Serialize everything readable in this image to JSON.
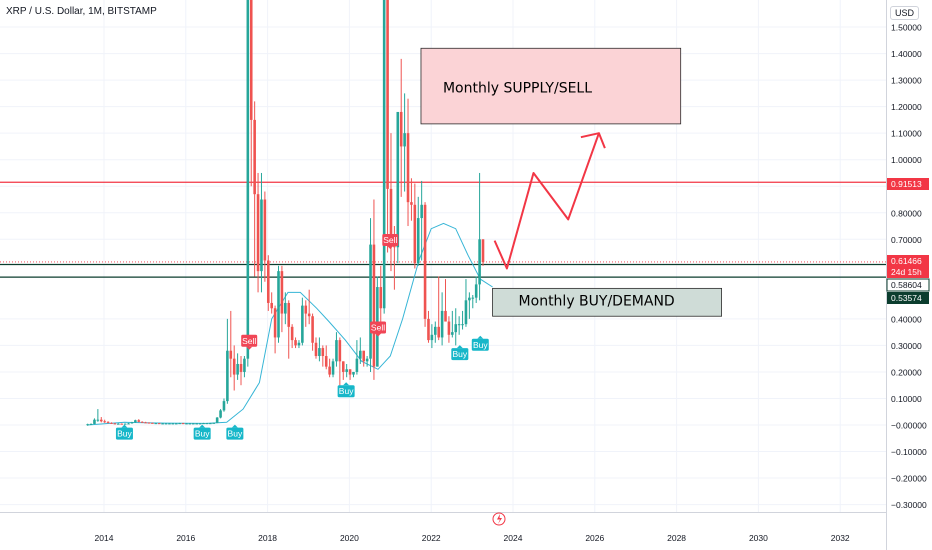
{
  "header": {
    "title": "XRP / U.S. Dollar, 1M, BITSTAMP",
    "currency": "USD"
  },
  "colors": {
    "up": "#26a69a",
    "down": "#ef5350",
    "ma": "#36b5d6",
    "supply_fill": "#fbd3d6",
    "demand_fill": "#cfdcd7",
    "red_line": "#f23645",
    "dark_line": "#0b3d2e",
    "buy_badge": "#17b7c9",
    "sell_badge": "#f04656"
  },
  "chart_data": {
    "type": "candlestick",
    "ylim": [
      -0.32,
      1.58
    ],
    "xlim": [
      2013.0,
      2033.3
    ],
    "yticks": [
      "1.50000",
      "1.40000",
      "1.30000",
      "1.20000",
      "1.10000",
      "1.00000",
      "0.90000",
      "0.80000",
      "0.70000",
      "0.40000",
      "0.30000",
      "0.20000",
      "0.10000",
      "−0.00000",
      "−0.10000",
      "−0.20000",
      "−0.30000"
    ],
    "ytick_values": [
      1.5,
      1.4,
      1.3,
      1.2,
      1.1,
      1.0,
      0.9,
      0.8,
      0.7,
      0.4,
      0.3,
      0.2,
      0.1,
      0.0,
      -0.1,
      -0.2,
      -0.3
    ],
    "xticks": [
      "2014",
      "2016",
      "2018",
      "2020",
      "2022",
      "2024",
      "2026",
      "2028",
      "2030",
      "2032"
    ],
    "xtick_values": [
      2014,
      2016,
      2018,
      2020,
      2022,
      2024,
      2026,
      2028,
      2030,
      2032
    ],
    "price_labels": [
      {
        "text": "0.91513",
        "value": 0.91513,
        "style": "red"
      },
      {
        "text": "0.61466",
        "value": 0.61466,
        "style": "red"
      },
      {
        "text": "24d 15h",
        "value": 0.5955,
        "style": "red"
      },
      {
        "text": "0.58604",
        "value": 0.58604,
        "style": "dark-outline"
      },
      {
        "text": "0.53574",
        "value": 0.53574,
        "style": "dark"
      }
    ],
    "horizontal_lines": [
      {
        "value": 0.91513,
        "style": "red"
      },
      {
        "value": 0.61466,
        "style": "red-dotted"
      },
      {
        "value": 0.605,
        "style": "dark"
      },
      {
        "value": 0.5575,
        "style": "dark"
      }
    ],
    "zones": [
      {
        "label": "Monthly SUPPLY/SELL",
        "x0": 2021.75,
        "x1": 2028.1,
        "y0": 1.135,
        "y1": 1.42,
        "kind": "supply"
      },
      {
        "label": "Monthly BUY/DEMAND",
        "x0": 2023.5,
        "x1": 2029.1,
        "y0": 0.41,
        "y1": 0.515,
        "kind": "demand"
      }
    ],
    "projection": [
      [
        2023.55,
        0.695
      ],
      [
        2023.85,
        0.59
      ],
      [
        2024.5,
        0.95
      ],
      [
        2025.35,
        0.775
      ],
      [
        2026.1,
        1.1
      ]
    ],
    "signals": [
      {
        "text": "Buy",
        "x": 2014.5,
        "y": -0.01,
        "kind": "buy"
      },
      {
        "text": "Buy",
        "x": 2016.4,
        "y": -0.01,
        "kind": "buy"
      },
      {
        "text": "Buy",
        "x": 2017.2,
        "y": -0.01,
        "kind": "buy"
      },
      {
        "text": "Sell",
        "x": 2017.55,
        "y": 0.34,
        "kind": "sell"
      },
      {
        "text": "Buy",
        "x": 2019.92,
        "y": 0.15,
        "kind": "buy"
      },
      {
        "text": "Sell",
        "x": 2020.7,
        "y": 0.39,
        "kind": "sell"
      },
      {
        "text": "Sell",
        "x": 2021.0,
        "y": 0.72,
        "kind": "sell"
      },
      {
        "text": "Buy",
        "x": 2022.7,
        "y": 0.29,
        "kind": "buy"
      },
      {
        "text": "Buy",
        "x": 2023.2,
        "y": 0.325,
        "kind": "buy"
      }
    ],
    "candles_monthly_ohlc_start": 2013.6,
    "candles": [
      [
        0.0,
        0.005,
        -0.003,
        0.003
      ],
      [
        0.003,
        0.006,
        0.0,
        0.004
      ],
      [
        0.004,
        0.025,
        0.003,
        0.02
      ],
      [
        0.02,
        0.06,
        0.012,
        0.02
      ],
      [
        0.02,
        0.03,
        0.01,
        0.014
      ],
      [
        0.014,
        0.02,
        0.008,
        0.012
      ],
      [
        0.012,
        0.014,
        0.006,
        0.008
      ],
      [
        0.008,
        0.01,
        0.004,
        0.006
      ],
      [
        0.006,
        0.008,
        0.004,
        0.005
      ],
      [
        0.005,
        0.007,
        0.004,
        0.005
      ],
      [
        0.005,
        0.006,
        0.003,
        0.004
      ],
      [
        0.004,
        0.006,
        0.003,
        0.005
      ],
      [
        0.005,
        0.008,
        0.004,
        0.006
      ],
      [
        0.006,
        0.012,
        0.005,
        0.01
      ],
      [
        0.01,
        0.02,
        0.008,
        0.018
      ],
      [
        0.018,
        0.022,
        0.01,
        0.012
      ],
      [
        0.012,
        0.014,
        0.008,
        0.01
      ],
      [
        0.01,
        0.012,
        0.008,
        0.009
      ],
      [
        0.009,
        0.01,
        0.007,
        0.008
      ],
      [
        0.008,
        0.009,
        0.006,
        0.007
      ],
      [
        0.007,
        0.008,
        0.006,
        0.007
      ],
      [
        0.007,
        0.008,
        0.006,
        0.006
      ],
      [
        0.006,
        0.007,
        0.005,
        0.006
      ],
      [
        0.006,
        0.007,
        0.005,
        0.006
      ],
      [
        0.006,
        0.007,
        0.005,
        0.006
      ],
      [
        0.006,
        0.007,
        0.005,
        0.006
      ],
      [
        0.006,
        0.007,
        0.005,
        0.006
      ],
      [
        0.006,
        0.008,
        0.005,
        0.007
      ],
      [
        0.007,
        0.008,
        0.006,
        0.006
      ],
      [
        0.006,
        0.007,
        0.005,
        0.006
      ],
      [
        0.006,
        0.007,
        0.005,
        0.006
      ],
      [
        0.006,
        0.007,
        0.005,
        0.006
      ],
      [
        0.006,
        0.007,
        0.005,
        0.006
      ],
      [
        0.006,
        0.007,
        0.005,
        0.006
      ],
      [
        0.006,
        0.008,
        0.005,
        0.007
      ],
      [
        0.007,
        0.008,
        0.006,
        0.007
      ],
      [
        0.007,
        0.008,
        0.006,
        0.007
      ],
      [
        0.007,
        0.009,
        0.006,
        0.008
      ],
      [
        0.008,
        0.03,
        0.007,
        0.028
      ],
      [
        0.028,
        0.06,
        0.025,
        0.055
      ],
      [
        0.055,
        0.1,
        0.05,
        0.09
      ],
      [
        0.09,
        0.4,
        0.08,
        0.28
      ],
      [
        0.28,
        0.43,
        0.18,
        0.25
      ],
      [
        0.25,
        0.3,
        0.13,
        0.19
      ],
      [
        0.19,
        0.27,
        0.17,
        0.23
      ],
      [
        0.23,
        0.26,
        0.15,
        0.2
      ],
      [
        0.2,
        0.26,
        0.18,
        0.25
      ],
      [
        0.25,
        2.3,
        0.22,
        2.0
      ],
      [
        2.0,
        3.3,
        0.9,
        1.15
      ],
      [
        1.15,
        1.22,
        0.56,
        0.87
      ],
      [
        0.87,
        0.95,
        0.5,
        0.58
      ],
      [
        0.58,
        0.95,
        0.5,
        0.85
      ],
      [
        0.85,
        0.88,
        0.54,
        0.62
      ],
      [
        0.62,
        0.64,
        0.43,
        0.46
      ],
      [
        0.46,
        0.5,
        0.42,
        0.44
      ],
      [
        0.44,
        0.45,
        0.27,
        0.33
      ],
      [
        0.33,
        0.6,
        0.31,
        0.58
      ],
      [
        0.58,
        0.6,
        0.35,
        0.42
      ],
      [
        0.42,
        0.5,
        0.38,
        0.46
      ],
      [
        0.46,
        0.47,
        0.25,
        0.37
      ],
      [
        0.37,
        0.38,
        0.29,
        0.32
      ],
      [
        0.32,
        0.33,
        0.29,
        0.3
      ],
      [
        0.3,
        0.32,
        0.29,
        0.31
      ],
      [
        0.31,
        0.48,
        0.3,
        0.45
      ],
      [
        0.45,
        0.47,
        0.37,
        0.42
      ],
      [
        0.42,
        0.51,
        0.38,
        0.41
      ],
      [
        0.41,
        0.42,
        0.28,
        0.31
      ],
      [
        0.31,
        0.33,
        0.25,
        0.26
      ],
      [
        0.26,
        0.33,
        0.24,
        0.29
      ],
      [
        0.29,
        0.3,
        0.22,
        0.26
      ],
      [
        0.26,
        0.3,
        0.21,
        0.22
      ],
      [
        0.22,
        0.25,
        0.18,
        0.19
      ],
      [
        0.19,
        0.25,
        0.18,
        0.24
      ],
      [
        0.24,
        0.35,
        0.22,
        0.32
      ],
      [
        0.32,
        0.33,
        0.14,
        0.24
      ],
      [
        0.24,
        0.24,
        0.17,
        0.2
      ],
      [
        0.2,
        0.23,
        0.18,
        0.21
      ],
      [
        0.21,
        0.21,
        0.17,
        0.19
      ],
      [
        0.19,
        0.2,
        0.18,
        0.2
      ],
      [
        0.2,
        0.32,
        0.19,
        0.25
      ],
      [
        0.25,
        0.33,
        0.23,
        0.28
      ],
      [
        0.28,
        0.28,
        0.22,
        0.24
      ],
      [
        0.24,
        0.26,
        0.22,
        0.25
      ],
      [
        0.25,
        0.78,
        0.2,
        0.68
      ],
      [
        0.68,
        0.85,
        0.17,
        0.22
      ],
      [
        0.22,
        0.56,
        0.22,
        0.52
      ],
      [
        0.52,
        0.6,
        0.35,
        0.44
      ],
      [
        0.44,
        1.96,
        0.42,
        1.77
      ],
      [
        1.77,
        1.96,
        0.65,
        0.89
      ],
      [
        0.89,
        1.1,
        0.58,
        0.72
      ],
      [
        0.72,
        0.75,
        0.51,
        0.67
      ],
      [
        0.67,
        1.17,
        0.61,
        1.18
      ],
      [
        1.18,
        1.38,
        0.86,
        1.05
      ],
      [
        1.05,
        1.25,
        0.88,
        1.1
      ],
      [
        1.1,
        1.23,
        0.75,
        0.84
      ],
      [
        0.84,
        0.93,
        0.77,
        0.83
      ],
      [
        0.83,
        0.91,
        0.59,
        0.61
      ],
      [
        0.61,
        0.86,
        0.6,
        0.78
      ],
      [
        0.78,
        0.92,
        0.62,
        0.83
      ],
      [
        0.83,
        0.84,
        0.37,
        0.4
      ],
      [
        0.4,
        0.43,
        0.31,
        0.32
      ],
      [
        0.32,
        0.38,
        0.29,
        0.34
      ],
      [
        0.34,
        0.39,
        0.31,
        0.37
      ],
      [
        0.37,
        0.56,
        0.32,
        0.33
      ],
      [
        0.33,
        0.5,
        0.3,
        0.43
      ],
      [
        0.43,
        0.55,
        0.39,
        0.39
      ],
      [
        0.39,
        0.41,
        0.31,
        0.34
      ],
      [
        0.34,
        0.43,
        0.33,
        0.35
      ],
      [
        0.35,
        0.44,
        0.3,
        0.38
      ],
      [
        0.38,
        0.41,
        0.34,
        0.38
      ],
      [
        0.38,
        0.43,
        0.36,
        0.38
      ],
      [
        0.38,
        0.55,
        0.37,
        0.47
      ],
      [
        0.47,
        0.5,
        0.4,
        0.48
      ],
      [
        0.48,
        0.49,
        0.44,
        0.48
      ],
      [
        0.48,
        0.56,
        0.46,
        0.53
      ],
      [
        0.53,
        0.95,
        0.47,
        0.7
      ],
      [
        0.7,
        0.7,
        0.6,
        0.614
      ]
    ],
    "ma_line": [
      [
        2013.6,
        0.0
      ],
      [
        2014.5,
        0.01
      ],
      [
        2015.5,
        0.007
      ],
      [
        2016.5,
        0.006
      ],
      [
        2017.0,
        0.01
      ],
      [
        2017.4,
        0.06
      ],
      [
        2017.8,
        0.16
      ],
      [
        2018.1,
        0.4
      ],
      [
        2018.5,
        0.5
      ],
      [
        2018.8,
        0.5
      ],
      [
        2019.2,
        0.44
      ],
      [
        2019.5,
        0.39
      ],
      [
        2019.9,
        0.32
      ],
      [
        2020.3,
        0.24
      ],
      [
        2020.7,
        0.21
      ],
      [
        2021.0,
        0.26
      ],
      [
        2021.3,
        0.4
      ],
      [
        2021.7,
        0.62
      ],
      [
        2022.0,
        0.74
      ],
      [
        2022.3,
        0.76
      ],
      [
        2022.6,
        0.74
      ],
      [
        2022.9,
        0.64
      ],
      [
        2023.2,
        0.55
      ],
      [
        2023.5,
        0.52
      ]
    ]
  }
}
